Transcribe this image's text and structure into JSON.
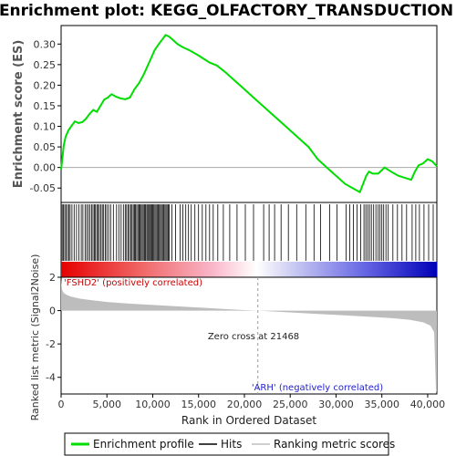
{
  "title": "Enrichment plot: KEGG_OLFACTORY_TRANSDUCTION",
  "colors": {
    "es_line": "#00dd00",
    "hit": "#000000",
    "metric_fill": "#bdbdbd",
    "zero_line": "#999999",
    "pos_label": "#cc0000",
    "neg_label": "#2222cc"
  },
  "chart_data": [
    {
      "type": "line",
      "name": "enrichment",
      "ylabel": "Enrichment score (ES)",
      "xlim": [
        0,
        41000
      ],
      "ylim": [
        -0.085,
        0.345
      ],
      "y_ticks": [
        -0.05,
        0.0,
        0.05,
        0.1,
        0.15,
        0.2,
        0.25,
        0.3
      ],
      "y_tick_labels": [
        "-0.05",
        "0.00",
        "0.05",
        "0.10",
        "0.15",
        "0.20",
        "0.25",
        "0.30"
      ],
      "grid": false,
      "series": [
        {
          "name": "Enrichment profile",
          "x": [
            0,
            150,
            300,
            500,
            800,
            1100,
            1500,
            1900,
            2300,
            2700,
            3100,
            3500,
            3900,
            4300,
            4700,
            5100,
            5500,
            6000,
            6500,
            7000,
            7500,
            8000,
            8500,
            9000,
            9400,
            9800,
            10200,
            10600,
            11000,
            11400,
            11800,
            12200,
            12700,
            13300,
            14000,
            14800,
            15500,
            16200,
            17000,
            18000,
            19000,
            20000,
            21000,
            22000,
            23000,
            24000,
            25000,
            26000,
            27000,
            28000,
            29000,
            30000,
            31000,
            31800,
            32600,
            33300,
            33600,
            34000,
            34600,
            35300,
            36000,
            36800,
            37500,
            38200,
            38600,
            39000,
            39500,
            40000,
            40500,
            41000
          ],
          "y": [
            -0.005,
            0.025,
            0.055,
            0.075,
            0.09,
            0.1,
            0.112,
            0.108,
            0.11,
            0.118,
            0.13,
            0.14,
            0.135,
            0.15,
            0.165,
            0.17,
            0.178,
            0.172,
            0.168,
            0.166,
            0.17,
            0.19,
            0.205,
            0.225,
            0.245,
            0.265,
            0.285,
            0.298,
            0.31,
            0.322,
            0.318,
            0.31,
            0.3,
            0.292,
            0.285,
            0.275,
            0.265,
            0.255,
            0.248,
            0.23,
            0.21,
            0.19,
            0.17,
            0.15,
            0.13,
            0.11,
            0.09,
            0.07,
            0.05,
            0.02,
            0.0,
            -0.02,
            -0.04,
            -0.05,
            -0.06,
            -0.02,
            -0.01,
            -0.015,
            -0.015,
            0.0,
            -0.01,
            -0.02,
            -0.025,
            -0.03,
            -0.01,
            0.005,
            0.01,
            0.02,
            0.015,
            0.003
          ]
        }
      ]
    },
    {
      "type": "bar",
      "name": "hits",
      "hit_positions": [
        120,
        260,
        400,
        530,
        700,
        850,
        990,
        1180,
        1420,
        1680,
        1950,
        2200,
        2380,
        2620,
        2800,
        2980,
        3150,
        3330,
        3480,
        3620,
        3750,
        3900,
        4020,
        4180,
        4350,
        4500,
        4650,
        4820,
        4990,
        5180,
        5400,
        5700,
        6050,
        6300,
        6550,
        6800,
        7000,
        7150,
        7300,
        7450,
        7600,
        7740,
        7880,
        8000,
        8120,
        8250,
        8380,
        8500,
        8620,
        8740,
        8860,
        8980,
        9100,
        9220,
        9340,
        9450,
        9560,
        9670,
        9780,
        9890,
        10000,
        10120,
        10240,
        10360,
        10480,
        10600,
        10720,
        10840,
        10960,
        11080,
        11200,
        11320,
        11440,
        11560,
        11680,
        11800,
        12100,
        12500,
        13000,
        13300,
        13600,
        13900,
        14200,
        14600,
        15000,
        15400,
        15800,
        16200,
        16600,
        17100,
        17700,
        18400,
        19200,
        20100,
        21000,
        22100,
        22700,
        23300,
        24000,
        24800,
        25700,
        26700,
        27600,
        28300,
        29300,
        30100,
        31100,
        31500,
        31900,
        32300,
        32700,
        33050,
        33250,
        33450,
        33650,
        33850,
        34100,
        34350,
        34600,
        34800,
        35000,
        35200,
        35450,
        35700,
        36200,
        36700,
        37200,
        37700,
        38300,
        38700,
        39100,
        39600,
        40100,
        40600
      ]
    },
    {
      "type": "area",
      "name": "ranked_metric",
      "ylabel": "Ranked list metric (Signal2Noise)",
      "xlabel": "Rank in Ordered Dataset",
      "xlim": [
        0,
        41000
      ],
      "ylim": [
        -5.0,
        2.0
      ],
      "x_ticks": [
        0,
        5000,
        10000,
        15000,
        20000,
        25000,
        30000,
        35000,
        40000
      ],
      "x_tick_labels": [
        "0",
        "5,000",
        "10,000",
        "15,000",
        "20,000",
        "25,000",
        "30,000",
        "35,000",
        "40,000"
      ],
      "y_ticks": [
        -4,
        -2,
        0,
        2
      ],
      "y_tick_labels": [
        "-4",
        "-2",
        "0",
        "2"
      ],
      "x": [
        0,
        100,
        300,
        600,
        1000,
        2000,
        3000,
        5000,
        8000,
        12000,
        16000,
        19000,
        21468,
        24000,
        28000,
        32000,
        36000,
        38000,
        39500,
        40300,
        40700,
        40900,
        41000
      ],
      "y": [
        1.85,
        1.25,
        1.05,
        0.95,
        0.85,
        0.72,
        0.65,
        0.52,
        0.4,
        0.28,
        0.15,
        0.06,
        0.0,
        -0.08,
        -0.2,
        -0.32,
        -0.45,
        -0.55,
        -0.7,
        -0.9,
        -1.3,
        -4.7,
        -4.9
      ],
      "zero_cross": 21468,
      "annotation": "Zero cross at 21468",
      "pos_label": "'FSHD2' (positively correlated)",
      "neg_label": "'ARH' (negatively correlated)"
    }
  ],
  "legend": {
    "items": [
      "Enrichment profile",
      "Hits",
      "Ranking metric scores"
    ]
  }
}
